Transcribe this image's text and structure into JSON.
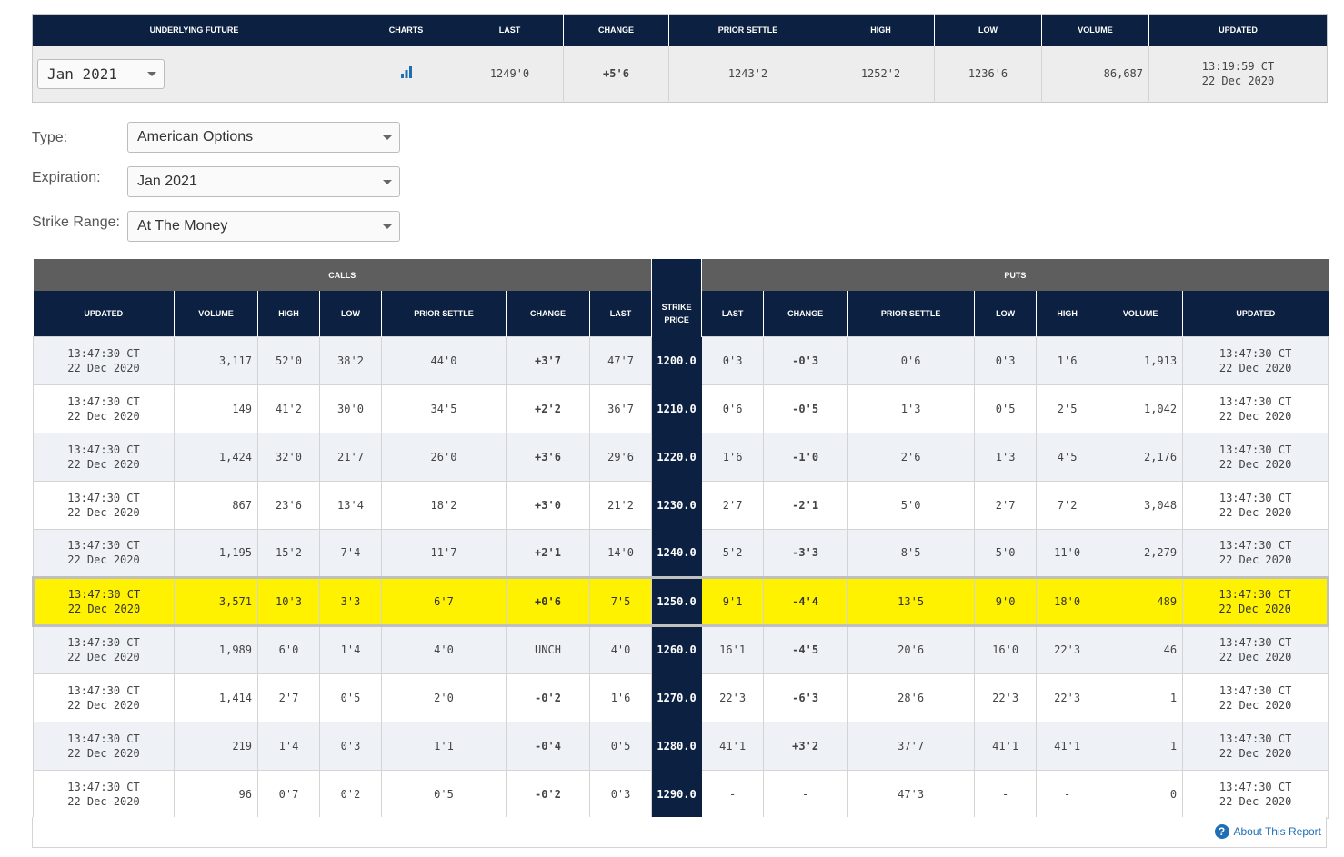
{
  "future": {
    "headers": [
      "UNDERLYING FUTURE",
      "CHARTS",
      "LAST",
      "CHANGE",
      "PRIOR SETTLE",
      "HIGH",
      "LOW",
      "VOLUME",
      "UPDATED"
    ],
    "contract": "Jan 2021",
    "chart_icon": "bar-chart-icon",
    "last": "1249'0",
    "change": "+5'6",
    "prior_settle": "1243'2",
    "high": "1252'2",
    "low": "1236'6",
    "volume": "86,687",
    "updated_time": "13:19:59 CT",
    "updated_date": "22 Dec 2020"
  },
  "filters": {
    "type_label": "Type:",
    "type_value": "American Options",
    "expiration_label": "Expiration:",
    "expiration_value": "Jan 2021",
    "strike_label": "Strike Range:",
    "strike_value": "At The Money"
  },
  "options": {
    "calls_label": "CALLS",
    "puts_label": "PUTS",
    "columns": {
      "updated": "UPDATED",
      "volume": "VOLUME",
      "high": "HIGH",
      "low": "LOW",
      "prior_settle": "PRIOR SETTLE",
      "change": "CHANGE",
      "last": "LAST",
      "strike_line1": "STRIKE",
      "strike_line2": "PRICE"
    },
    "rows": [
      {
        "strike": "1200.0",
        "call": {
          "t": "13:47:30 CT",
          "d": "22 Dec 2020",
          "vol": "3,117",
          "high": "52'0",
          "low": "38'2",
          "prior": "44'0",
          "chg": "+3'7",
          "last": "47'7"
        },
        "put": {
          "last": "0'3",
          "chg": "-0'3",
          "prior": "0'6",
          "low": "0'3",
          "high": "1'6",
          "vol": "1,913",
          "t": "13:47:30 CT",
          "d": "22 Dec 2020"
        }
      },
      {
        "strike": "1210.0",
        "call": {
          "t": "13:47:30 CT",
          "d": "22 Dec 2020",
          "vol": "149",
          "high": "41'2",
          "low": "30'0",
          "prior": "34'5",
          "chg": "+2'2",
          "last": "36'7"
        },
        "put": {
          "last": "0'6",
          "chg": "-0'5",
          "prior": "1'3",
          "low": "0'5",
          "high": "2'5",
          "vol": "1,042",
          "t": "13:47:30 CT",
          "d": "22 Dec 2020"
        }
      },
      {
        "strike": "1220.0",
        "call": {
          "t": "13:47:30 CT",
          "d": "22 Dec 2020",
          "vol": "1,424",
          "high": "32'0",
          "low": "21'7",
          "prior": "26'0",
          "chg": "+3'6",
          "last": "29'6"
        },
        "put": {
          "last": "1'6",
          "chg": "-1'0",
          "prior": "2'6",
          "low": "1'3",
          "high": "4'5",
          "vol": "2,176",
          "t": "13:47:30 CT",
          "d": "22 Dec 2020"
        }
      },
      {
        "strike": "1230.0",
        "call": {
          "t": "13:47:30 CT",
          "d": "22 Dec 2020",
          "vol": "867",
          "high": "23'6",
          "low": "13'4",
          "prior": "18'2",
          "chg": "+3'0",
          "last": "21'2"
        },
        "put": {
          "last": "2'7",
          "chg": "-2'1",
          "prior": "5'0",
          "low": "2'7",
          "high": "7'2",
          "vol": "3,048",
          "t": "13:47:30 CT",
          "d": "22 Dec 2020"
        }
      },
      {
        "strike": "1240.0",
        "call": {
          "t": "13:47:30 CT",
          "d": "22 Dec 2020",
          "vol": "1,195",
          "high": "15'2",
          "low": "7'4",
          "prior": "11'7",
          "chg": "+2'1",
          "last": "14'0"
        },
        "put": {
          "last": "5'2",
          "chg": "-3'3",
          "prior": "8'5",
          "low": "5'0",
          "high": "11'0",
          "vol": "2,279",
          "t": "13:47:30 CT",
          "d": "22 Dec 2020"
        }
      },
      {
        "strike": "1250.0",
        "atm": true,
        "call": {
          "t": "13:47:30 CT",
          "d": "22 Dec 2020",
          "vol": "3,571",
          "high": "10'3",
          "low": "3'3",
          "prior": "6'7",
          "chg": "+0'6",
          "last": "7'5"
        },
        "put": {
          "last": "9'1",
          "chg": "-4'4",
          "prior": "13'5",
          "low": "9'0",
          "high": "18'0",
          "vol": "489",
          "t": "13:47:30 CT",
          "d": "22 Dec 2020"
        }
      },
      {
        "strike": "1260.0",
        "call": {
          "t": "13:47:30 CT",
          "d": "22 Dec 2020",
          "vol": "1,989",
          "high": "6'0",
          "low": "1'4",
          "prior": "4'0",
          "chg": "UNCH",
          "last": "4'0"
        },
        "put": {
          "last": "16'1",
          "chg": "-4'5",
          "prior": "20'6",
          "low": "16'0",
          "high": "22'3",
          "vol": "46",
          "t": "13:47:30 CT",
          "d": "22 Dec 2020"
        }
      },
      {
        "strike": "1270.0",
        "call": {
          "t": "13:47:30 CT",
          "d": "22 Dec 2020",
          "vol": "1,414",
          "high": "2'7",
          "low": "0'5",
          "prior": "2'0",
          "chg": "-0'2",
          "last": "1'6"
        },
        "put": {
          "last": "22'3",
          "chg": "-6'3",
          "prior": "28'6",
          "low": "22'3",
          "high": "22'3",
          "vol": "1",
          "t": "13:47:30 CT",
          "d": "22 Dec 2020"
        }
      },
      {
        "strike": "1280.0",
        "call": {
          "t": "13:47:30 CT",
          "d": "22 Dec 2020",
          "vol": "219",
          "high": "1'4",
          "low": "0'3",
          "prior": "1'1",
          "chg": "-0'4",
          "last": "0'5"
        },
        "put": {
          "last": "41'1",
          "chg": "+3'2",
          "prior": "37'7",
          "low": "41'1",
          "high": "41'1",
          "vol": "1",
          "t": "13:47:30 CT",
          "d": "22 Dec 2020"
        }
      },
      {
        "strike": "1290.0",
        "call": {
          "t": "13:47:30 CT",
          "d": "22 Dec 2020",
          "vol": "96",
          "high": "0'7",
          "low": "0'2",
          "prior": "0'5",
          "chg": "-0'2",
          "last": "0'3"
        },
        "put": {
          "last": "-",
          "chg": "-",
          "prior": "47'3",
          "low": "-",
          "high": "-",
          "vol": "0",
          "t": "13:47:30 CT",
          "d": "22 Dec 2020"
        }
      }
    ]
  },
  "footer": {
    "about_label": "About This Report",
    "about_icon": "question-circle-icon"
  },
  "colors": {
    "header_navy": "#0c2141",
    "group_gray": "#5e5e5e",
    "positive": "#1a9a2a",
    "negative": "#e0141e",
    "atm_highlight": "#fff200",
    "link_blue": "#1e6fb4"
  }
}
